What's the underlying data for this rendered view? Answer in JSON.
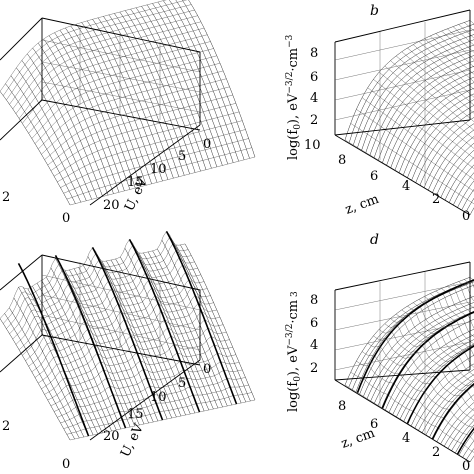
{
  "chart_data": [
    {
      "id": "a",
      "type": "surface3d",
      "panel_label": "",
      "x_axis": {
        "label": "",
        "ticks": []
      },
      "y_axis": {
        "label": "U, eV",
        "ticks": [
          "0",
          "5",
          "10",
          "15",
          "20"
        ],
        "range": [
          0,
          25
        ]
      },
      "z_axis": {
        "label": "",
        "ticks": [
          "2",
          "0"
        ]
      },
      "visible_tick_left": [
        "2",
        "0"
      ],
      "shape": "smooth plateau surface decreasing with U"
    },
    {
      "id": "b",
      "type": "surface3d",
      "panel_label": "b",
      "x_axis": {
        "label": "z, cm",
        "ticks": [
          "10",
          "8",
          "6",
          "4",
          "2",
          "0"
        ],
        "range": [
          0,
          10
        ]
      },
      "z_axis": {
        "label": "log(f0), eV-3/2cm-3",
        "label_parts": [
          "log(f",
          "0",
          "), eV",
          "−3/2",
          "·cm",
          "−3"
        ],
        "ticks": [
          "2",
          "4",
          "6",
          "8"
        ],
        "range": [
          1,
          9
        ]
      },
      "shape": "surface rising from ~1 to ~8.5 with increasing z-depth"
    },
    {
      "id": "c",
      "type": "surface3d",
      "panel_label": "",
      "y_axis": {
        "label": "U, eV",
        "ticks": [
          "0",
          "5",
          "10",
          "15",
          "20"
        ],
        "range": [
          0,
          25
        ]
      },
      "visible_tick_left": [
        "2",
        "0"
      ],
      "shape": "corrugated surface with 5 ridges"
    },
    {
      "id": "d",
      "type": "surface3d",
      "panel_label": "d",
      "x_axis": {
        "label": "z, cm",
        "ticks": [
          "8",
          "6",
          "4",
          "2",
          "0"
        ],
        "range": [
          0,
          10
        ]
      },
      "z_axis": {
        "label": "log(f0), eV-3/2cm 3",
        "label_parts": [
          "log(f",
          "0",
          "), eV",
          "−3/2",
          "·cm",
          " 3"
        ],
        "ticks": [
          "2",
          "4",
          "6",
          "8"
        ],
        "range": [
          1,
          9
        ]
      },
      "shape": "surface with parallel ridges rising toward the back"
    }
  ]
}
